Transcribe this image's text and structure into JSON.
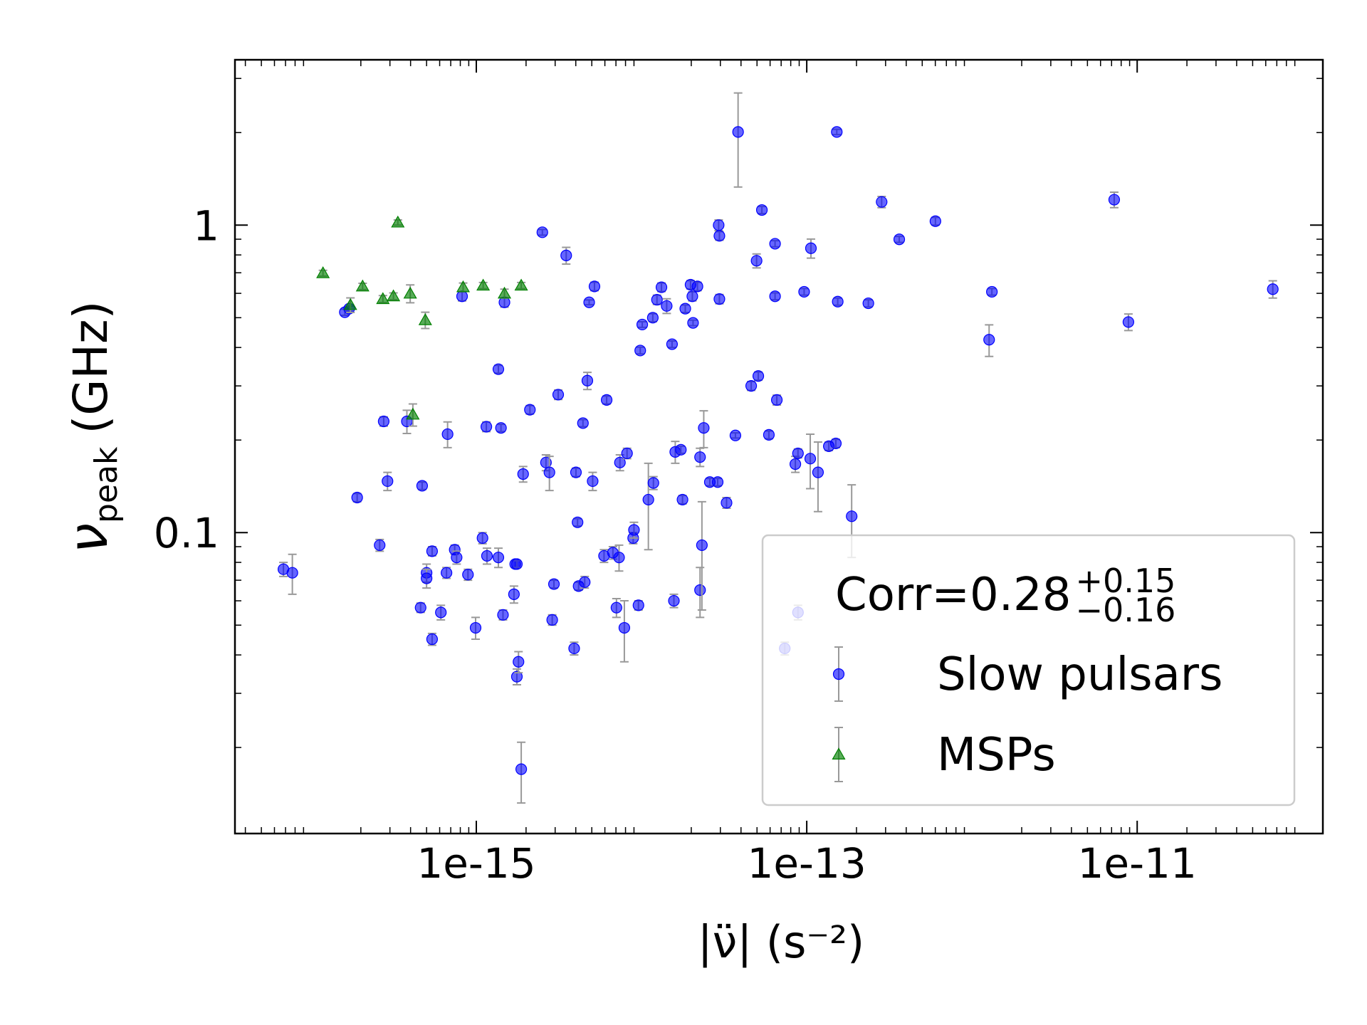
{
  "chart_data": {
    "type": "scatter",
    "xlabel": "|ν̈| (s⁻²)",
    "ylabel": {
      "symbol": "ν",
      "sub": "peak",
      "unit": "(GHz)"
    },
    "xscale": "log",
    "yscale": "log",
    "xlim": [
      3.46e-17,
      1.33e-10
    ],
    "ylim": [
      0.0105,
      3.45
    ],
    "xticks": [
      {
        "value": 1e-15,
        "label": "1e-15"
      },
      {
        "value": 1e-13,
        "label": "1e-13"
      },
      {
        "value": 1e-11,
        "label": "1e-11"
      }
    ],
    "yticks": [
      0.1,
      1
    ],
    "grid": false,
    "legend": {
      "loc": "lower right",
      "title": {
        "text": "Corr=0.28",
        "upper": "+0.15",
        "lower": "−0.16"
      }
    },
    "error_color": "#999999",
    "series": [
      {
        "name": "Slow pulsars",
        "color": "#0000ff",
        "marker": "circle",
        "x": [
          6.8e-17,
          7.7e-17,
          1.6e-16,
          1.7e-16,
          1.9e-16,
          2.6e-16,
          2.75e-16,
          2.9e-16,
          3.8e-16,
          4.6e-16,
          4.7e-16,
          5e-16,
          5e-16,
          5.4e-16,
          5.4e-16,
          6.1e-16,
          6.6e-16,
          6.7e-16,
          7.4e-16,
          7.6e-16,
          8.2e-16,
          8.9e-16,
          9.9e-16,
          1.09e-15,
          1.15e-15,
          1.16e-15,
          1.36e-15,
          1.36e-15,
          1.41e-15,
          1.45e-15,
          1.48e-15,
          1.69e-15,
          1.72e-15,
          1.76e-15,
          1.76e-15,
          1.8e-15,
          1.87e-15,
          1.92e-15,
          2.11e-15,
          2.51e-15,
          2.64e-15,
          2.77e-15,
          2.88e-15,
          2.95e-15,
          3.13e-15,
          3.5e-15,
          3.91e-15,
          4.01e-15,
          4.1e-15,
          4.16e-15,
          4.42e-15,
          4.53e-15,
          4.7e-15,
          4.82e-15,
          5.06e-15,
          5.19e-15,
          5.93e-15,
          6.15e-15,
          6.71e-15,
          7.05e-15,
          7.31e-15,
          7.4e-15,
          7.87e-15,
          8.17e-15,
          8.9e-15,
          9e-15,
          9.58e-15,
          9.82e-15,
          1.01e-14,
          1.1e-14,
          1.17e-14,
          1.18e-14,
          1.24e-14,
          1.32e-14,
          1.42e-14,
          1.53e-14,
          1.57e-14,
          1.6e-14,
          1.73e-14,
          1.77e-14,
          1.84e-14,
          1.98e-14,
          2.03e-14,
          2.05e-14,
          2.18e-14,
          2.26e-14,
          2.26e-14,
          2.32e-14,
          2.38e-14,
          2.59e-14,
          2.89e-14,
          2.93e-14,
          2.96e-14,
          2.96e-14,
          3.27e-14,
          3.7e-14,
          3.84e-14,
          4.61e-14,
          4.97e-14,
          5.09e-14,
          5.35e-14,
          5.9e-14,
          6.43e-14,
          6.43e-14,
          6.59e-14,
          8.53e-14,
          8.85e-14,
          9.64e-14,
          1.05e-13,
          1.06e-13,
          1.17e-13,
          1.36e-13,
          1.5e-13,
          1.52e-13,
          1.54e-13,
          1.87e-13,
          2.36e-13,
          2.84e-13,
          3.63e-13,
          6.01e-13,
          1.27e-12,
          1.32e-12,
          7.26e-12,
          8.85e-12,
          6.62e-11,
          8.85e-14,
          7.36e-14
        ],
        "values": [
          0.076,
          0.074,
          0.521,
          0.535,
          0.13,
          0.091,
          0.23,
          0.147,
          0.23,
          0.057,
          0.142,
          0.074,
          0.071,
          0.087,
          0.045,
          0.055,
          0.074,
          0.209,
          0.088,
          0.083,
          0.587,
          0.073,
          0.049,
          0.096,
          0.221,
          0.084,
          0.34,
          0.083,
          0.219,
          0.054,
          0.561,
          0.063,
          0.079,
          0.079,
          0.034,
          0.038,
          0.017,
          0.155,
          0.251,
          0.948,
          0.169,
          0.157,
          0.052,
          0.068,
          0.281,
          0.797,
          0.042,
          0.157,
          0.108,
          0.067,
          0.227,
          0.069,
          0.312,
          0.561,
          0.147,
          0.632,
          0.084,
          0.27,
          0.086,
          0.057,
          0.083,
          0.169,
          0.049,
          0.181,
          0.096,
          0.102,
          0.058,
          0.391,
          0.475,
          0.128,
          0.5,
          0.145,
          0.572,
          0.628,
          0.546,
          0.41,
          0.06,
          0.183,
          0.186,
          0.128,
          0.535,
          0.64,
          0.587,
          0.481,
          0.632,
          0.176,
          0.065,
          0.091,
          0.219,
          0.146,
          0.146,
          1.0,
          0.923,
          0.575,
          0.125,
          0.207,
          2.01,
          0.3,
          0.766,
          0.323,
          1.12,
          0.208,
          0.87,
          0.587,
          0.27,
          0.167,
          0.181,
          0.607,
          0.174,
          0.841,
          0.157,
          0.191,
          0.195,
          2.01,
          0.564,
          0.113,
          0.557,
          1.19,
          0.899,
          1.03,
          0.424,
          0.607,
          1.21,
          0.484,
          0.619,
          0.055,
          0.042
        ],
        "yerr": [
          0.004,
          0.011,
          0.012,
          0.01,
          0.004,
          0.004,
          0.008,
          0.01,
          0.02,
          0.002,
          0.004,
          0.005,
          0.005,
          0.003,
          0.002,
          0.003,
          0.003,
          0.02,
          0.003,
          0.004,
          0.02,
          0.003,
          0.004,
          0.004,
          0.008,
          0.005,
          0.01,
          0.006,
          0.006,
          0.002,
          0.02,
          0.004,
          0.002,
          0.002,
          0.002,
          0.003,
          0.0038,
          0.009,
          0.008,
          0.02,
          0.01,
          0.02,
          0.002,
          0.002,
          0.01,
          0.05,
          0.002,
          0.005,
          0.003,
          0.002,
          0.006,
          0.003,
          0.02,
          0.01,
          0.01,
          0.02,
          0.004,
          0.008,
          0.004,
          0.004,
          0.008,
          0.01,
          0.011,
          0.007,
          0.004,
          0.006,
          0.002,
          0.01,
          0.01,
          0.04,
          0.015,
          0.007,
          0.02,
          0.02,
          0.03,
          0.01,
          0.003,
          0.015,
          0.005,
          0.004,
          0.015,
          0.02,
          0.02,
          0.01,
          0.02,
          0.012,
          0.012,
          0.035,
          0.03,
          0.004,
          0.004,
          0.04,
          0.03,
          0.02,
          0.005,
          0.004,
          0.68,
          0.01,
          0.04,
          0.01,
          0.03,
          0.006,
          0.02,
          0.015,
          0.01,
          0.01,
          0.006,
          0.015,
          0.035,
          0.06,
          0.04,
          0.006,
          0.006,
          0.04,
          0.015,
          0.03,
          0.015,
          0.05,
          0.02,
          0.03,
          0.05,
          0.015,
          0.07,
          0.03,
          0.04,
          0.003,
          0.002
        ]
      },
      {
        "name": "MSPs",
        "color": "#008000",
        "marker": "triangle",
        "x": [
          1.18e-16,
          1.73e-16,
          2.05e-16,
          2.72e-16,
          3.15e-16,
          3.35e-16,
          3.98e-16,
          4.13e-16,
          4.91e-16,
          8.32e-16,
          1.1e-15,
          1.48e-15,
          1.87e-15
        ],
        "values": [
          0.698,
          0.55,
          0.632,
          0.575,
          0.587,
          1.02,
          0.599,
          0.242,
          0.491,
          0.628,
          0.636,
          0.599,
          0.636
        ],
        "yerr": [
          0.015,
          0.03,
          0.015,
          0.015,
          0.015,
          0.02,
          0.04,
          0.02,
          0.03,
          0.02,
          0.015,
          0.02,
          0.015
        ]
      }
    ]
  }
}
